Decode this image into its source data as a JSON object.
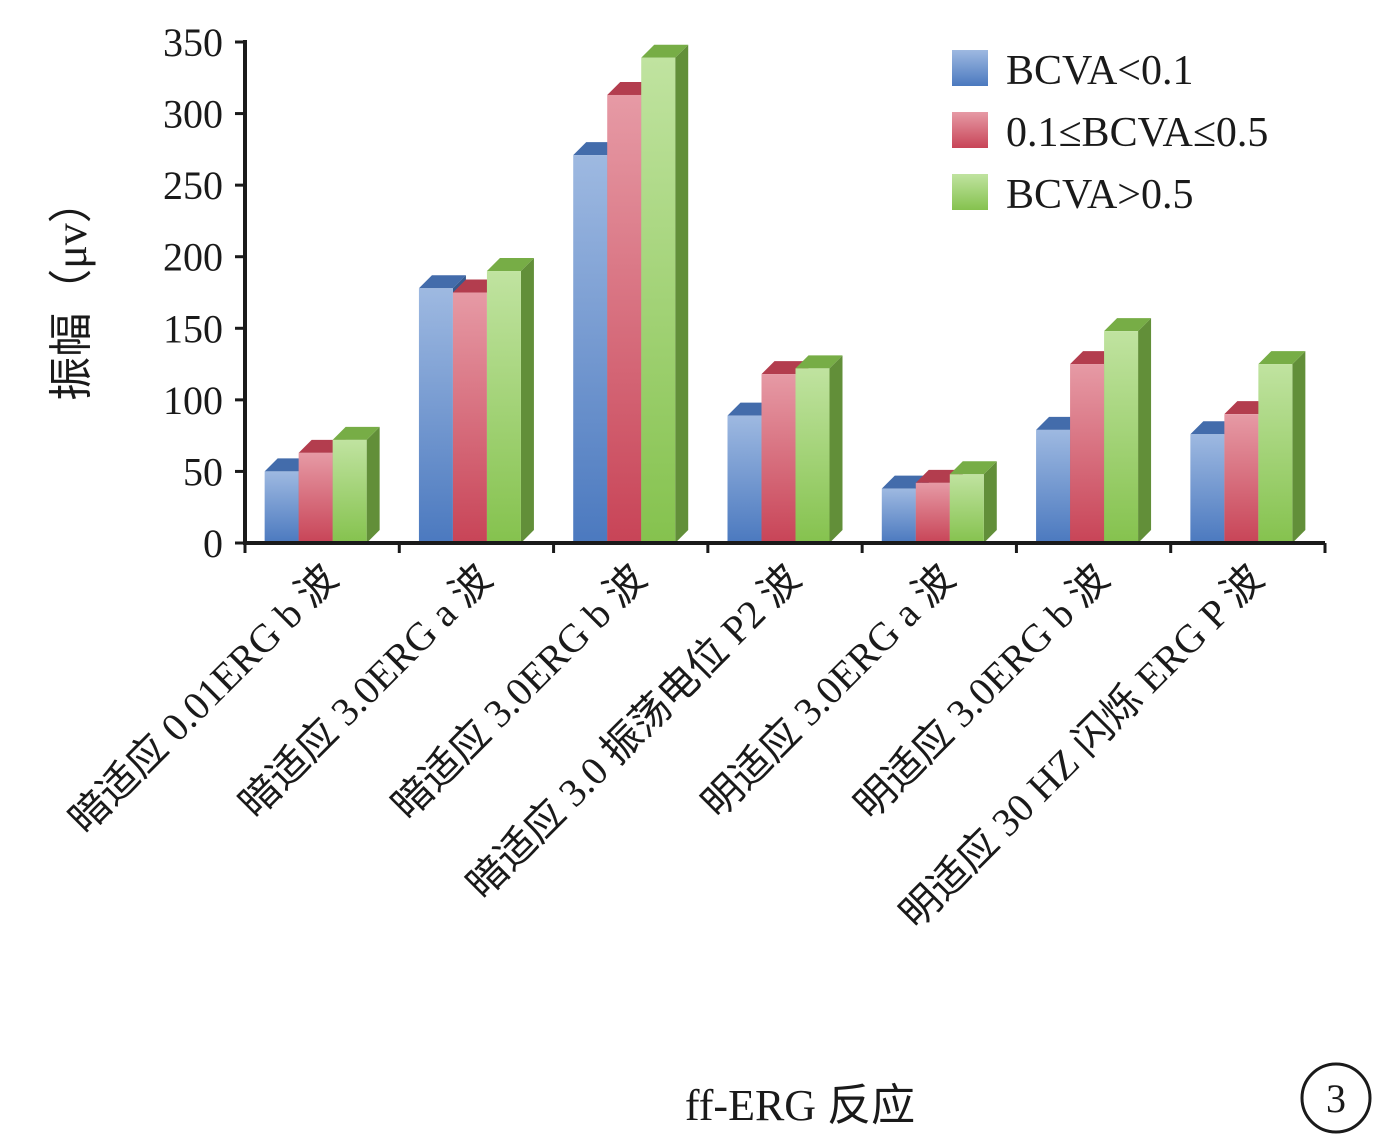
{
  "chart_data": {
    "type": "bar",
    "title": "",
    "xlabel": "ff-ERG 反应",
    "ylabel": "振幅（μv）",
    "ylim": [
      0,
      350
    ],
    "yticks": [
      0,
      50,
      100,
      150,
      200,
      250,
      300,
      350
    ],
    "grid": false,
    "legend_position": "top-right",
    "categories": [
      "暗适应 0.01ERG b 波",
      "暗适应 3.0ERG a 波",
      "暗适应 3.0ERG b 波",
      "暗适应 3.0 振荡电位 P2 波",
      "明适应 3.0ERG a 波",
      "明适应 3.0ERG b 波",
      "明适应 30 HZ 闪烁 ERG P 波"
    ],
    "series": [
      {
        "name": "BCVA<0.1",
        "color": "#4f7fc9",
        "values": [
          50,
          178,
          271,
          89,
          38,
          79,
          76
        ]
      },
      {
        "name": "0.1≤BCVA≤0.5",
        "color": "#d2485c",
        "values": [
          63,
          175,
          313,
          118,
          42,
          125,
          90
        ]
      },
      {
        "name": "BCVA>0.5",
        "color": "#8ccc52",
        "values": [
          72,
          190,
          339,
          122,
          48,
          148,
          125
        ]
      }
    ]
  },
  "panel_label": "3"
}
